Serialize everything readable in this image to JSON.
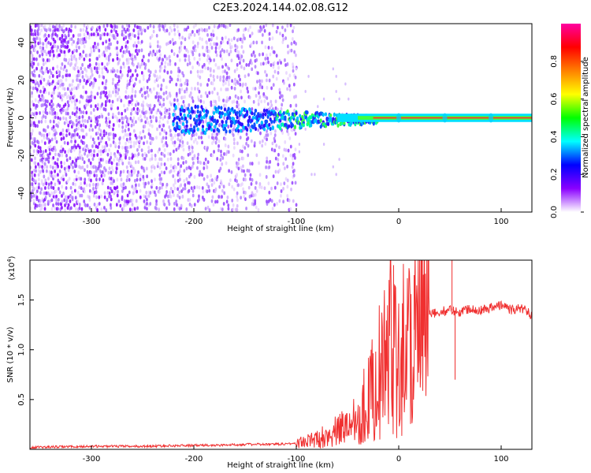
{
  "title": "C2E3.2024.144.02.08.G12",
  "chart_data": [
    {
      "type": "heatmap",
      "xlabel": "Height of straight line (km)",
      "ylabel": "Frequency (Hz)",
      "xlim": [
        -360,
        130
      ],
      "ylim": [
        -50,
        50
      ],
      "xticks": [
        -300,
        -200,
        -100,
        0,
        100
      ],
      "yticks": [
        -40,
        -20,
        0,
        20,
        40
      ],
      "xtick_labels": [
        "-300",
        "-200",
        "-100",
        "0",
        "100"
      ],
      "ytick_labels": [
        "-40",
        "-20",
        "0",
        "20",
        "40"
      ],
      "colorbar": {
        "label": "Normalized spectral amplitude",
        "range": [
          0,
          1
        ],
        "ticks": [
          0.0,
          0.2,
          0.4,
          0.6,
          0.8
        ],
        "tick_labels": [
          "0.0",
          "0.2",
          "0.4",
          "0.6",
          "0.8"
        ],
        "colors": [
          "#ffffff",
          "#8a00ff",
          "#0000ff",
          "#00ffff",
          "#00ff00",
          "#ffff00",
          "#ff8000",
          "#ff0000",
          "#ff00a0"
        ]
      },
      "features": {
        "diffuse_noise_extent_km": [
          -360,
          -100
        ],
        "signal_band_start_km": -220,
        "signal_center_hz": 0,
        "signal_strong_from_km": -20,
        "bright_spots_km": [
          0,
          45,
          90
        ]
      },
      "grid": false
    },
    {
      "type": "line",
      "xlabel": "Height of straight line (km)",
      "ylabel": "SNR (10 * v/v)",
      "y_multiplier_label": "(x10",
      "y_multiplier_exp": "4",
      "y_multiplier_close": ")",
      "xlim": [
        -360,
        130
      ],
      "ylim": [
        0,
        1.9
      ],
      "xticks": [
        -300,
        -200,
        -100,
        0,
        100
      ],
      "yticks": [
        0.5,
        1.0,
        1.5
      ],
      "xtick_labels": [
        "-300",
        "-200",
        "-100",
        "0",
        "100"
      ],
      "ytick_labels": [
        "0.5",
        "1.0",
        "1.5"
      ],
      "series": [
        {
          "color": "#f03030",
          "x": [
            -360,
            -300,
            -250,
            -200,
            -180,
            -150,
            -120,
            -100,
            -90,
            -80,
            -70,
            -60,
            -50,
            -40,
            -30,
            -20,
            -10,
            -5,
            0,
            5,
            10,
            20,
            25,
            30,
            40,
            50,
            60,
            70,
            80,
            90,
            100,
            110,
            120,
            130
          ],
          "y": [
            0.02,
            0.03,
            0.03,
            0.04,
            0.04,
            0.05,
            0.05,
            0.06,
            0.08,
            0.1,
            0.15,
            0.18,
            0.25,
            0.35,
            0.5,
            0.75,
            0.95,
            1.3,
            1.0,
            1.05,
            1.15,
            1.25,
            1.3,
            1.35,
            1.38,
            1.4,
            1.38,
            1.42,
            1.4,
            1.42,
            1.45,
            1.4,
            1.42,
            1.35
          ]
        }
      ],
      "spikes": [
        {
          "x": -5,
          "y": 1.85
        },
        {
          "x": 15,
          "y": 1.75
        },
        {
          "x": 52,
          "y": 1.9
        },
        {
          "x": 55,
          "y": 0.7
        },
        {
          "x": -27,
          "y": 1.0
        }
      ],
      "grid": false
    }
  ]
}
